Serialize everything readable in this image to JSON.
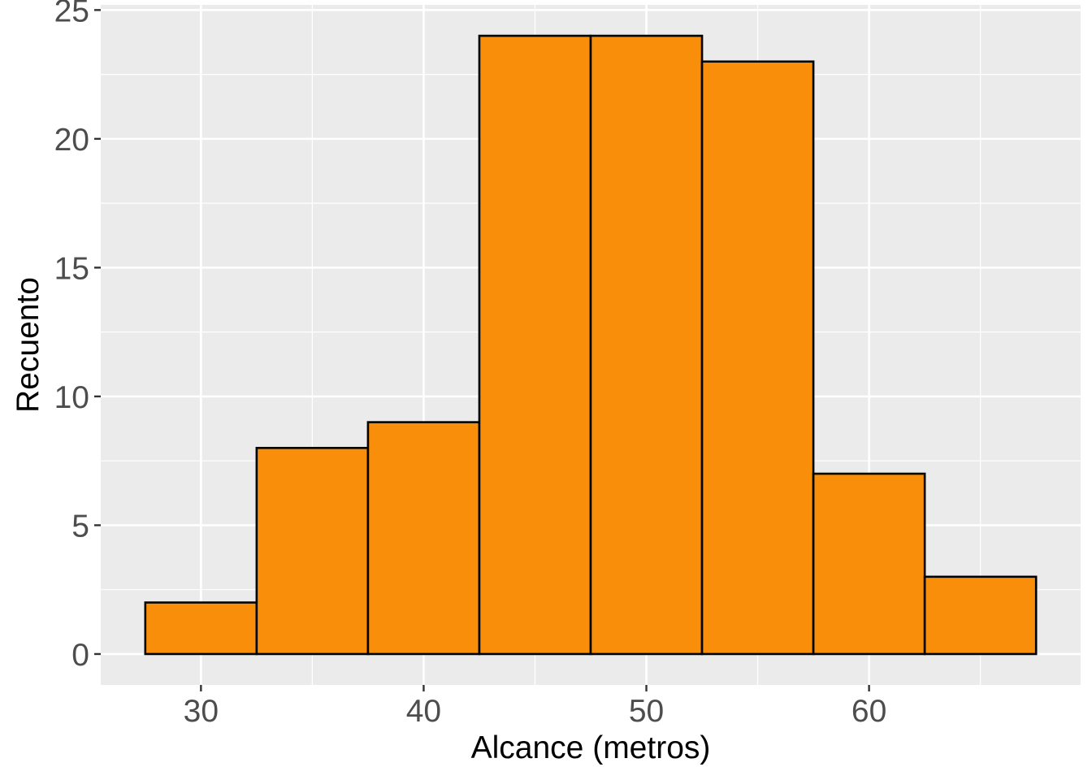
{
  "chart_data": {
    "type": "bar",
    "subtype": "histogram",
    "title": "",
    "xlabel": "Alcance (metros)",
    "ylabel": "Recuento",
    "bin_width": 5,
    "bins": [
      {
        "start": 27.5,
        "end": 32.5,
        "count": 2
      },
      {
        "start": 32.5,
        "end": 37.5,
        "count": 8
      },
      {
        "start": 37.5,
        "end": 42.5,
        "count": 9
      },
      {
        "start": 42.5,
        "end": 47.5,
        "count": 24
      },
      {
        "start": 47.5,
        "end": 52.5,
        "count": 24
      },
      {
        "start": 52.5,
        "end": 57.5,
        "count": 23
      },
      {
        "start": 57.5,
        "end": 62.5,
        "count": 7
      },
      {
        "start": 62.5,
        "end": 67.5,
        "count": 3
      }
    ],
    "xlim": [
      25.5,
      69.5
    ],
    "ylim": [
      -1.2,
      25.2
    ],
    "x_ticks": [
      30,
      40,
      50,
      60
    ],
    "x_tick_labels": [
      "30",
      "40",
      "50",
      "60"
    ],
    "x_minor_ticks": [
      35,
      45,
      55,
      65
    ],
    "y_ticks": [
      0,
      5,
      10,
      15,
      20,
      25
    ],
    "y_tick_labels": [
      "0",
      "5",
      "10",
      "15",
      "20",
      "25"
    ],
    "y_minor_ticks": [
      2.5,
      7.5,
      12.5,
      17.5,
      22.5
    ],
    "grid": true,
    "legend": "none",
    "colors": {
      "bar_fill": "#F88E09",
      "bar_outline": "#000000",
      "panel_background": "#EBEBEB",
      "grid": "#FFFFFF"
    }
  }
}
